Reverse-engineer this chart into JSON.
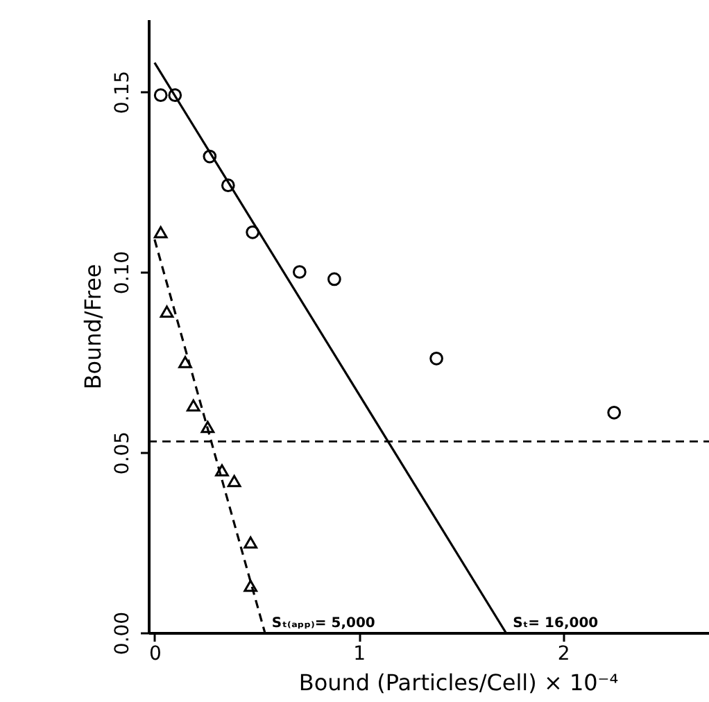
{
  "chart_data": {
    "type": "scatter",
    "xlabel": "Bound (Particles/Cell) × 10⁻⁴",
    "ylabel": "Bound/Free",
    "xlim": [
      -0.03,
      3.0
    ],
    "ylim": [
      0,
      0.17
    ],
    "xticks": [
      0,
      1,
      2
    ],
    "yticks": [
      {
        "value": 0,
        "label": "0.00"
      },
      {
        "value": 0.05,
        "label": "0.05"
      },
      {
        "value": 0.1,
        "label": "0.10"
      },
      {
        "value": 0.15,
        "label": "0.15"
      }
    ],
    "grid": false,
    "series": [
      {
        "marker": "circle",
        "color": "#000000",
        "x": [
          0.03,
          0.1,
          0.27,
          0.36,
          0.48,
          0.71,
          0.88,
          1.38,
          2.25
        ],
        "values": [
          0.149,
          0.149,
          0.132,
          0.124,
          0.111,
          0.1,
          0.098,
          0.076,
          0.061
        ]
      },
      {
        "marker": "triangle",
        "color": "#000000",
        "x": [
          0.03,
          0.06,
          0.15,
          0.19,
          0.26,
          0.33,
          0.39,
          0.47,
          0.47
        ],
        "values": [
          0.111,
          0.089,
          0.075,
          0.063,
          0.057,
          0.045,
          0.042,
          0.025,
          0.013
        ]
      },
      {
        "type": "line",
        "line_style": "solid",
        "color": "#000000",
        "x": [
          0,
          1.72
        ],
        "values": [
          0.158,
          0
        ]
      },
      {
        "type": "line",
        "line_style": "dashed",
        "color": "#000000",
        "x": [
          0,
          0.54
        ],
        "values": [
          0.109,
          0
        ]
      }
    ],
    "ref_lines": [
      {
        "axis": "y",
        "value": 0.053,
        "line_style": "dashed",
        "color": "#000000"
      }
    ],
    "annotations": [
      {
        "text": "Sₜ₍ₐₚₚ₎= 5,000",
        "x": 0.54,
        "y": 0
      },
      {
        "text": "Sₜ= 16,000",
        "x": 1.72,
        "y": 0
      }
    ]
  }
}
